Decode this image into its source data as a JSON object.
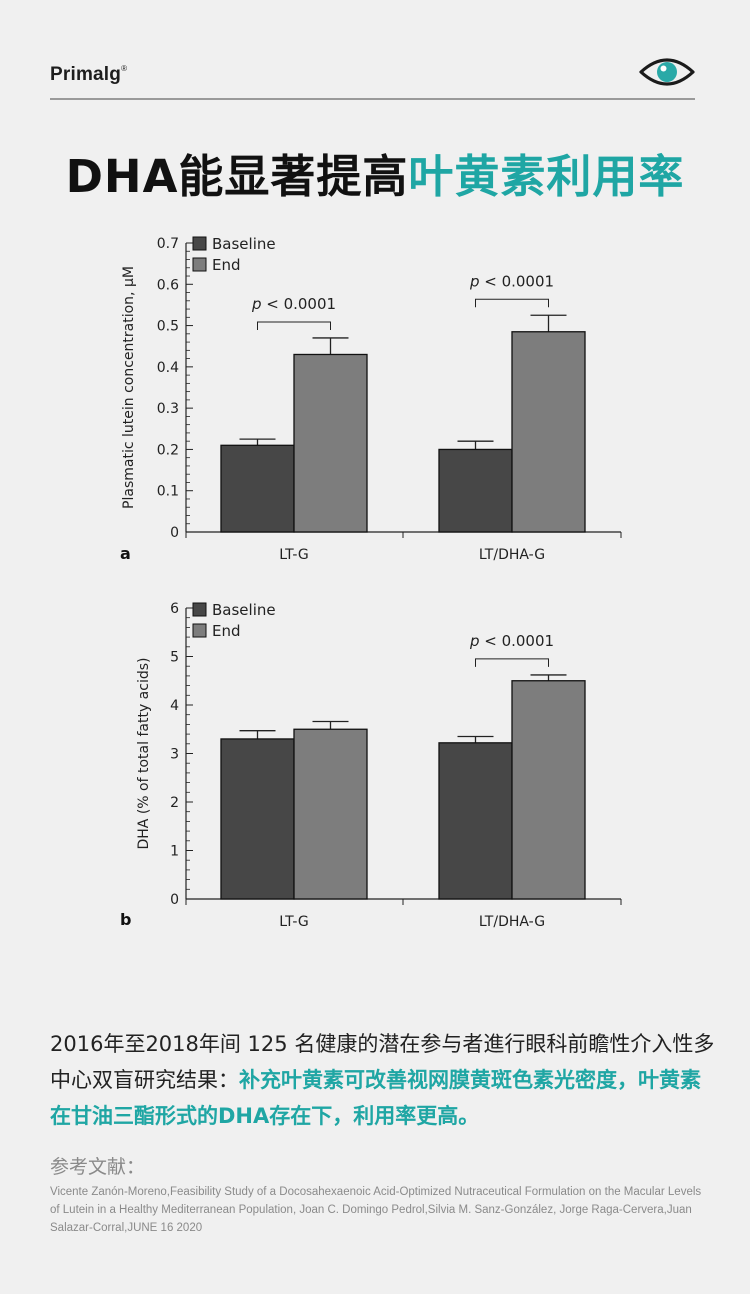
{
  "header": {
    "brand": "Primalg",
    "brand_mark": "®",
    "icon": "eye-icon",
    "accent_color": "#1fa6a4"
  },
  "title": {
    "part1": "DHA能显著提高",
    "part2": "叶黄素利用率"
  },
  "chart_data": [
    {
      "type": "bar",
      "panel_label": "a",
      "categories": [
        "LT-G",
        "LT/DHA-G"
      ],
      "series": [
        {
          "name": "Baseline",
          "color": "#474747",
          "values": [
            0.21,
            0.2
          ],
          "errors": [
            0.015,
            0.02
          ]
        },
        {
          "name": "End",
          "color": "#7d7d7d",
          "values": [
            0.43,
            0.485
          ],
          "errors": [
            0.04,
            0.04
          ]
        }
      ],
      "ylabel": "Plasmatic lutein concentration, μM",
      "ylim": [
        0,
        0.7
      ],
      "yticks": [
        "0",
        "0.1",
        "0.2",
        "0.3",
        "0.4",
        "0.5",
        "0.6",
        "0.7"
      ],
      "legend": "top-left",
      "annotations": [
        {
          "category": "LT-G",
          "text_italic": "p",
          "text": " < 0.0001"
        },
        {
          "category": "LT/DHA-G",
          "text_italic": "p",
          "text": " < 0.0001"
        }
      ]
    },
    {
      "type": "bar",
      "panel_label": "b",
      "categories": [
        "LT-G",
        "LT/DHA-G"
      ],
      "series": [
        {
          "name": "Baseline",
          "color": "#474747",
          "values": [
            3.3,
            3.22
          ],
          "errors": [
            0.17,
            0.13
          ]
        },
        {
          "name": "End",
          "color": "#7d7d7d",
          "values": [
            3.5,
            4.5
          ],
          "errors": [
            0.16,
            0.12
          ]
        }
      ],
      "ylabel": "DHA (% of total fatty acids)",
      "ylim": [
        0,
        6
      ],
      "yticks": [
        "0",
        "1",
        "2",
        "3",
        "4",
        "5",
        "6"
      ],
      "legend": "top-left",
      "annotations": [
        {
          "category": "LT/DHA-G",
          "text_italic": "p",
          "text": " < 0.0001"
        }
      ]
    }
  ],
  "body": {
    "text_normal": "2016年至2018年间 125 名健康的潜在参与者進行眼科前瞻性介入性多中心双盲研究结果：",
    "text_highlight": "补充叶黄素可改善视网膜黄斑色素光密度，叶黄素在甘油三酯形式的DHA存在下，利用率更高。"
  },
  "references": {
    "title": "参考文献：",
    "text": "Vicente Zanón-Moreno,Feasibility Study of a Docosahexaenoic Acid-Optimized Nutraceutical Formulation on the Macular Levels of Lutein in a Healthy Mediterranean Population, Joan C. Domingo Pedrol,Silvia M. Sanz-González, Jorge Raga-Cervera,Juan Salazar-Corral,JUNE 16 2020"
  }
}
